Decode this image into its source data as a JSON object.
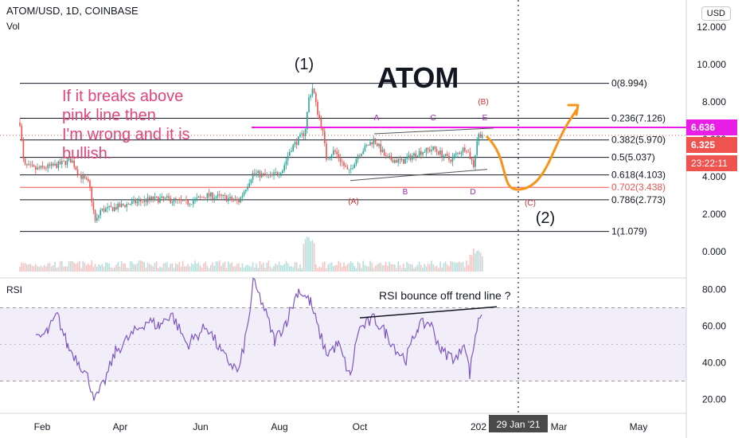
{
  "header": {
    "symbol": "ATOM/USD, 1D, COINBASE",
    "vol_label": "Vol",
    "currency": "USD"
  },
  "rsi_label": "RSI",
  "chart_data": {
    "type": "line",
    "title": "ATOM",
    "price_axis": {
      "ticks": [
        0,
        2,
        4,
        6,
        8,
        10,
        12
      ],
      "tick_labels": [
        "0.000",
        "2.000",
        "4.000",
        "6.000",
        "8.000",
        "10.000",
        "12.000"
      ],
      "ylim": [
        0,
        12.5
      ]
    },
    "rsi_axis": {
      "ticks": [
        20,
        40,
        60,
        80
      ],
      "tick_labels": [
        "20.00",
        "40.00",
        "60.00",
        "80.00"
      ],
      "band": [
        30,
        70
      ]
    },
    "x_tick_labels": [
      "Feb",
      "Apr",
      "Jun",
      "Aug",
      "Oct",
      "202",
      "Mar",
      "May"
    ],
    "crosshair_date": "29 Jan '21",
    "price_badges": [
      {
        "label": "6.636",
        "value": 6.636,
        "color": "#e91ee6"
      },
      {
        "label": "6.325",
        "value": 6.325,
        "color": "#ef5350"
      },
      {
        "label": "23:22:11",
        "value": 5.7,
        "color": "#ef5350"
      }
    ],
    "fib_levels": [
      {
        "label": "0(8.994)",
        "value": 8.994,
        "color": "#131722"
      },
      {
        "label": "0.236(7.126)",
        "value": 7.126,
        "color": "#131722"
      },
      {
        "label": "0.382(5.970)",
        "value": 5.97,
        "color": "#131722"
      },
      {
        "label": "0.5(5.037)",
        "value": 5.037,
        "color": "#131722"
      },
      {
        "label": "0.618(4.103)",
        "value": 4.103,
        "color": "#131722"
      },
      {
        "label": "0.702(3.438)",
        "value": 3.438,
        "color": "#ef5350"
      },
      {
        "label": "0.786(2.773)",
        "value": 2.773,
        "color": "#131722"
      },
      {
        "label": "1(1.079)",
        "value": 1.079,
        "color": "#131722"
      }
    ],
    "pink_line_value": 6.636,
    "annotations": {
      "note": [
        "If it breaks above",
        "pink line then",
        "I'm wrong and it is",
        "bullish."
      ],
      "wave1": "(1)",
      "wave2": "(2)",
      "rsi_note": "RSI bounce off trend line ?",
      "wave_letters": [
        {
          "label": "A",
          "color": "#9c27b0"
        },
        {
          "label": "C",
          "color": "#9c27b0"
        },
        {
          "label": "E",
          "color": "#9c27b0"
        },
        {
          "label": "B",
          "color": "#9c27b0"
        },
        {
          "label": "D",
          "color": "#9c27b0"
        },
        {
          "label": "(A)",
          "color": "#d32f2f"
        },
        {
          "label": "(B)",
          "color": "#d32f2f"
        },
        {
          "label": "(C)",
          "color": "#d32f2f"
        }
      ]
    },
    "colors": {
      "up": "#26a69a",
      "down": "#ef5350",
      "rsi": "#7e57c2",
      "forecast": "#f7931a",
      "pink": "#e91ee6",
      "note": "#e0457b"
    }
  }
}
